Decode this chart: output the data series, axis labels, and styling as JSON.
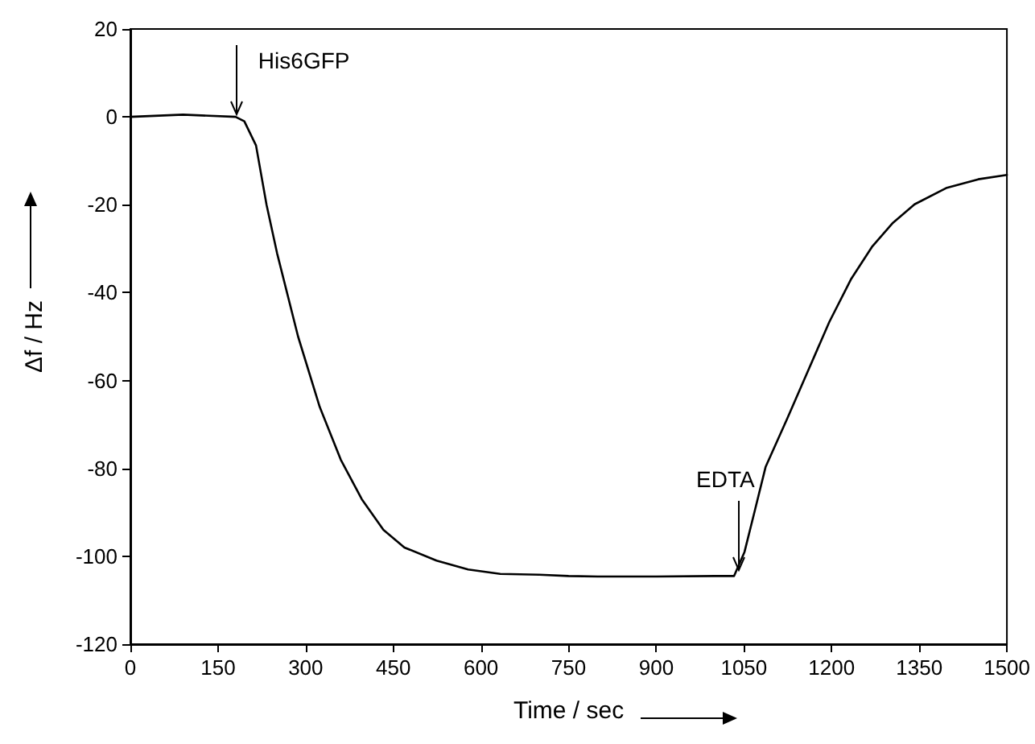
{
  "chart_data": {
    "type": "line",
    "xlabel": "Time / sec",
    "ylabel": "Δf / Hz",
    "x": [
      0,
      90,
      180,
      195,
      215,
      233,
      251,
      287,
      324,
      360,
      396,
      433,
      469,
      524,
      578,
      633,
      700,
      750,
      800,
      900,
      1000,
      1033,
      1051,
      1069,
      1087,
      1124,
      1160,
      1196,
      1233,
      1269,
      1305,
      1342,
      1396,
      1451,
      1500
    ],
    "series": [
      {
        "color": "#000000",
        "values": [
          0,
          0.5,
          0,
          -1,
          -6.5,
          -20,
          -31,
          -50,
          -66,
          -78,
          -87,
          -94,
          -98,
          -101,
          -103,
          -104,
          -104.2,
          -104.5,
          -104.6,
          -104.6,
          -104.5,
          -104.5,
          -99,
          -89.4,
          -79.7,
          -68.7,
          -57.7,
          -46.7,
          -37,
          -29.6,
          -24.1,
          -19.9,
          -16.2,
          -14.2,
          -13.2
        ]
      }
    ],
    "xlim": [
      0,
      1500
    ],
    "xticks": [
      0,
      150,
      300,
      450,
      600,
      750,
      900,
      1050,
      1200,
      1350,
      1500
    ],
    "ylim": [
      -120,
      20
    ],
    "yticks": [
      -120,
      -100,
      -80,
      -60,
      -40,
      -20,
      0,
      20
    ],
    "annotations": [
      {
        "text": "His6GFP",
        "x": 183,
        "y": 0
      },
      {
        "text": "EDTA",
        "x": 1040,
        "y": -104
      }
    ],
    "grid": false,
    "marker": "none",
    "line_style": "solid"
  }
}
